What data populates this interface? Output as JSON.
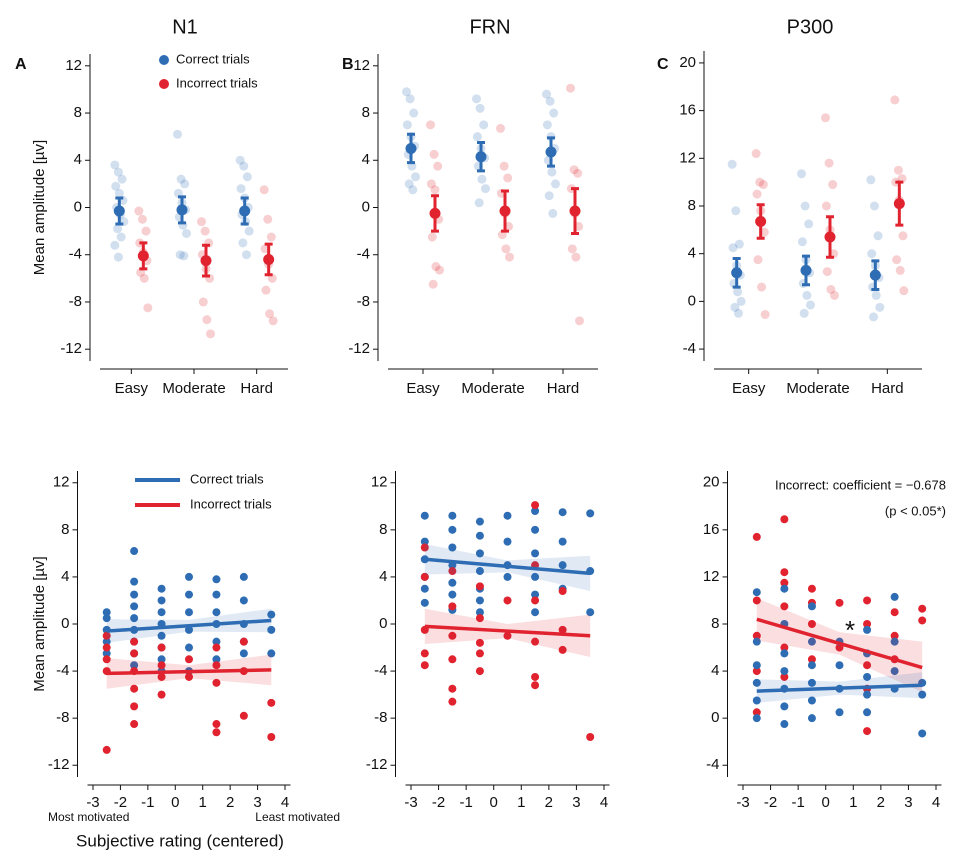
{
  "chart_data": [
    {
      "type": "strip",
      "panel": "A",
      "title": "N1",
      "ylabel": "Mean amplitude [µv]",
      "categories": [
        "Easy",
        "Moderate",
        "Hard"
      ],
      "ylim": [
        -13,
        13
      ],
      "yticks": [
        -12,
        -8,
        -4,
        0,
        4,
        8,
        12
      ],
      "legend": "upper center",
      "series": [
        {
          "name": "Correct trials",
          "color": "#2e6db4",
          "values": [
            -0.3,
            -0.2,
            -0.3
          ],
          "errors": [
            1.1,
            1.1,
            1.1
          ],
          "points": [
            [
              3.6,
              3,
              2.4,
              1.8,
              1.2,
              0.6,
              0,
              -0.6,
              -1.2,
              -1.8,
              -2.5,
              -3.2,
              -4.2
            ],
            [
              6.2,
              2.4,
              2,
              1.2,
              0.4,
              -0.2,
              -0.8,
              -1.5,
              -2.2,
              -4,
              -4.1
            ],
            [
              4,
              3.5,
              2.6,
              1.6,
              0.8,
              0,
              -0.6,
              -1.2,
              -2,
              -3,
              -4
            ]
          ]
        },
        {
          "name": "Incorrect trials",
          "color": "#e0232f",
          "values": [
            -4.1,
            -4.5,
            -4.4
          ],
          "errors": [
            1.1,
            1.3,
            1.3
          ],
          "points": [
            [
              -0.3,
              -1,
              -2,
              -3,
              -3.8,
              -4.5,
              -5.5,
              -6,
              -8.5
            ],
            [
              -1.2,
              -2,
              -3,
              -4,
              -5.2,
              -6,
              -8,
              -9.5,
              -10.7
            ],
            [
              1.5,
              -1,
              -2.5,
              -3.5,
              -4.8,
              -6,
              -7,
              -9,
              -9.6
            ]
          ]
        }
      ]
    },
    {
      "type": "strip",
      "panel": "B",
      "title": "FRN",
      "categories": [
        "Easy",
        "Moderate",
        "Hard"
      ],
      "ylim": [
        -13,
        13
      ],
      "yticks": [
        -12,
        -8,
        -4,
        0,
        4,
        8,
        12
      ],
      "series": [
        {
          "color": "#2e6db4",
          "values": [
            5.0,
            4.3,
            4.7
          ],
          "errors": [
            1.2,
            1.2,
            1.2
          ],
          "points": [
            [
              9.8,
              9.2,
              8,
              7,
              6,
              5.2,
              4.5,
              3.5,
              2.6,
              2,
              1.5
            ],
            [
              9.2,
              8.4,
              7,
              6,
              5,
              4.2,
              3.5,
              2.4,
              1.6,
              0.4
            ],
            [
              9.6,
              9,
              8,
              7,
              6,
              5,
              4,
              3,
              2,
              1,
              -0.5
            ]
          ]
        },
        {
          "color": "#e0232f",
          "values": [
            -0.5,
            -0.3,
            -0.3
          ],
          "errors": [
            1.5,
            1.7,
            1.9
          ],
          "points": [
            [
              7,
              4.5,
              3.5,
              2,
              1.5,
              -1,
              -2.5,
              -5,
              -5.3,
              -6.5
            ],
            [
              6.7,
              3.5,
              2.5,
              1.2,
              -0.5,
              -1.6,
              -2.3,
              -3.5,
              -4.2
            ],
            [
              10.1,
              3.2,
              2.9,
              1.6,
              -0.5,
              -1.6,
              -3.5,
              -4.2,
              -9.6
            ]
          ]
        }
      ]
    },
    {
      "type": "strip",
      "panel": "C",
      "title": "P300",
      "categories": [
        "Easy",
        "Moderate",
        "Hard"
      ],
      "ylim": [
        -5,
        21
      ],
      "yticks": [
        -4,
        0,
        4,
        8,
        12,
        16,
        20
      ],
      "series": [
        {
          "color": "#2e6db4",
          "values": [
            2.4,
            2.6,
            2.2
          ],
          "errors": [
            1.2,
            1.2,
            1.2
          ],
          "points": [
            [
              11.5,
              7.6,
              4.8,
              4.5,
              3,
              2.2,
              1.5,
              0.8,
              0,
              -0.5,
              -1
            ],
            [
              10.7,
              8,
              6.5,
              5,
              3.5,
              2.4,
              1.5,
              0.5,
              -0.3,
              -1
            ],
            [
              10.2,
              8,
              5.5,
              4,
              3,
              2,
              1.2,
              0.5,
              -0.5,
              -1.3
            ]
          ]
        },
        {
          "color": "#e0232f",
          "values": [
            6.7,
            5.4,
            8.2
          ],
          "errors": [
            1.4,
            1.7,
            1.8
          ],
          "points": [
            [
              12.4,
              10,
              9.8,
              9,
              7.6,
              5.8,
              3.5,
              1.2,
              -1.1
            ],
            [
              15.4,
              11.6,
              9.8,
              8,
              6,
              4,
              2.5,
              1,
              0.5
            ],
            [
              16.9,
              11,
              10.3,
              10,
              8.5,
              5.5,
              3.5,
              2.6,
              0.9
            ]
          ]
        }
      ]
    },
    {
      "type": "scatter",
      "ylabel": "Mean amplitude [µv]",
      "xlabel": "Subjective rating (centered)",
      "annotations": [
        "Most motivated",
        "Least motivated"
      ],
      "xlim": [
        -3.2,
        4.2
      ],
      "xticks": [
        -3,
        -2,
        -1,
        0,
        1,
        2,
        3,
        4
      ],
      "ylim": [
        -13,
        13
      ],
      "yticks": [
        -12,
        -8,
        -4,
        0,
        4,
        8,
        12
      ],
      "legend": "upper left",
      "series": [
        {
          "name": "Correct trials",
          "color": "#2e6db4",
          "x": [
            -2.5,
            -2.5,
            -2.5,
            -2.5,
            -2.5,
            -1.5,
            -1.5,
            -1.5,
            -1.5,
            -1.5,
            -1.5,
            -1.5,
            -1.5,
            -1.5,
            -0.5,
            -0.5,
            -0.5,
            -0.5,
            -0.5,
            -0.5,
            -0.5,
            -0.5,
            0.5,
            0.5,
            0.5,
            0.5,
            0.5,
            0.5,
            1.5,
            1.5,
            1.5,
            1.5,
            1.5,
            1.5,
            2.5,
            2.5,
            2.5,
            2.5,
            2.5,
            3.5,
            3.5,
            3.5
          ],
          "y": [
            1,
            0.5,
            -0.5,
            -1.5,
            -2.5,
            6.2,
            3.6,
            2.5,
            1.5,
            0.5,
            -0.5,
            -1.5,
            -2.5,
            -3.5,
            3,
            2,
            1,
            0,
            -1,
            -2,
            -3,
            -4,
            4,
            2.5,
            1,
            -0.5,
            -2,
            -4,
            3.8,
            2.5,
            1,
            0,
            -1.5,
            -3,
            4,
            2,
            0,
            -1.5,
            -2.5,
            0.8,
            -0.5,
            -2.5
          ],
          "fit": {
            "x": [
              -2.5,
              0.5,
              3.5
            ],
            "y": [
              -0.6,
              -0.15,
              0.3
            ],
            "lower": [
              -1.6,
              -0.65,
              -0.7
            ],
            "upper": [
              0.4,
              0.35,
              1.3
            ]
          }
        },
        {
          "name": "Incorrect trials",
          "color": "#e0232f",
          "x": [
            -2.5,
            -2.5,
            -2.5,
            -2.5,
            -2.5,
            -1.5,
            -1.5,
            -1.5,
            -1.5,
            -1.5,
            -1.5,
            -0.5,
            -0.5,
            -0.5,
            -0.5,
            0.5,
            0.5,
            1.5,
            1.5,
            1.5,
            1.5,
            1.5,
            2.5,
            2.5,
            2.5,
            3.5,
            3.5
          ],
          "y": [
            -10.7,
            -4,
            -3,
            -2,
            -1,
            -8.5,
            -7,
            -5.5,
            -4,
            -2.5,
            -1.5,
            -6,
            -4.5,
            -3.5,
            -2,
            -4.5,
            -3,
            -9.2,
            -8.5,
            -5,
            -3.5,
            -2,
            -7.8,
            -4,
            -1.5,
            -9.6,
            -6.7
          ],
          "fit": {
            "x": [
              -2.5,
              0.5,
              3.5
            ],
            "y": [
              -4.2,
              -4.05,
              -3.9
            ],
            "lower": [
              -5.5,
              -4.6,
              -5.2
            ],
            "upper": [
              -2.9,
              -3.5,
              -2.6
            ]
          }
        }
      ]
    },
    {
      "type": "scatter",
      "xlim": [
        -3.2,
        4.2
      ],
      "xticks": [
        -3,
        -2,
        -1,
        0,
        1,
        2,
        3,
        4
      ],
      "ylim": [
        -13,
        13
      ],
      "yticks": [
        -12,
        -8,
        -4,
        0,
        4,
        8,
        12
      ],
      "series": [
        {
          "color": "#2e6db4",
          "x": [
            -2.5,
            -2.5,
            -2.5,
            -2.5,
            -2.5,
            -2.5,
            -1.5,
            -1.5,
            -1.5,
            -1.5,
            -1.5,
            -1.5,
            -1.5,
            -0.5,
            -0.5,
            -0.5,
            -0.5,
            -0.5,
            -0.5,
            -0.5,
            0.5,
            0.5,
            0.5,
            0.5,
            1.5,
            1.5,
            1.5,
            1.5,
            1.5,
            1.5,
            2.5,
            2.5,
            2.5,
            2.5,
            3.5,
            3.5,
            3.5
          ],
          "y": [
            9.2,
            7,
            5.5,
            4,
            3,
            1.8,
            9.2,
            8,
            6.5,
            5,
            3.5,
            2.5,
            1.2,
            8.7,
            7.5,
            6,
            4.5,
            3,
            2,
            1,
            9.2,
            7,
            5,
            4,
            9.6,
            8,
            6,
            4,
            2.5,
            1,
            9.5,
            7,
            5,
            3,
            9.4,
            4.5,
            1
          ],
          "fit": {
            "x": [
              -2.5,
              0.5,
              3.5
            ],
            "y": [
              5.5,
              4.9,
              4.3
            ],
            "lower": [
              4.2,
              4.4,
              2.8
            ],
            "upper": [
              6.8,
              5.4,
              5.8
            ]
          }
        },
        {
          "color": "#e0232f",
          "x": [
            -2.5,
            -2.5,
            -2.5,
            -2.5,
            -2.5,
            -1.5,
            -1.5,
            -1.5,
            -1.5,
            -1.5,
            -1.5,
            -0.5,
            -0.5,
            -0.5,
            -0.5,
            -0.5,
            0.5,
            0.5,
            1.5,
            1.5,
            1.5,
            1.5,
            1.5,
            1.5,
            2.5,
            2.5,
            2.5,
            3.5
          ],
          "y": [
            6.5,
            4,
            -0.5,
            -2.5,
            -3.5,
            4.5,
            1.5,
            -1,
            -3,
            -5.5,
            -6.6,
            3.2,
            0.5,
            -1.6,
            -2.5,
            -4,
            2,
            -1,
            10.1,
            5,
            2,
            -1.5,
            -4.5,
            -5.2,
            2.8,
            -0.5,
            -2.2,
            -9.6
          ],
          "fit": {
            "x": [
              -2.5,
              0.5,
              3.5
            ],
            "y": [
              -0.2,
              -0.6,
              -1.0
            ],
            "lower": [
              -1.7,
              -1.2,
              -2.8
            ],
            "upper": [
              1.3,
              0.0,
              0.8
            ]
          }
        }
      ]
    },
    {
      "type": "scatter",
      "annotations": [
        "Incorrect: coefficient = −0.678",
        "(p < 0.05*)",
        "*"
      ],
      "xlim": [
        -3.2,
        4.2
      ],
      "xticks": [
        -3,
        -2,
        -1,
        0,
        1,
        2,
        3,
        4
      ],
      "ylim": [
        -5,
        21
      ],
      "yticks": [
        -4,
        0,
        4,
        8,
        12,
        16,
        20
      ],
      "series": [
        {
          "color": "#e0232f",
          "x": [
            -2.5,
            -2.5,
            -2.5,
            -2.5,
            -2.5,
            -1.5,
            -1.5,
            -1.5,
            -1.5,
            -1.5,
            -1.5,
            -0.5,
            -0.5,
            -0.5,
            -0.5,
            0.5,
            0.5,
            1.5,
            1.5,
            1.5,
            1.5,
            1.5,
            2.5,
            2.5,
            2.5,
            3.5,
            3.5
          ],
          "y": [
            15.4,
            10,
            7,
            4,
            0.5,
            16.9,
            12.4,
            11.5,
            9.5,
            6,
            3.5,
            11,
            9.8,
            8,
            5,
            9.8,
            6,
            10,
            8,
            4.5,
            2.5,
            -1.1,
            9,
            7,
            5,
            9.3,
            8.3
          ],
          "fit": {
            "x": [
              -2.5,
              0.5,
              3.5
            ],
            "y": [
              8.4,
              6.35,
              4.3
            ],
            "lower": [
              6.6,
              5.4,
              2.2
            ],
            "upper": [
              10.2,
              7.3,
              6.5
            ]
          }
        },
        {
          "color": "#2e6db4",
          "x": [
            -2.5,
            -2.5,
            -2.5,
            -2.5,
            -2.5,
            -2.5,
            -1.5,
            -1.5,
            -1.5,
            -1.5,
            -1.5,
            -1.5,
            -1.5,
            -0.5,
            -0.5,
            -0.5,
            -0.5,
            -0.5,
            -0.5,
            0.5,
            0.5,
            0.5,
            0.5,
            1.5,
            1.5,
            1.5,
            1.5,
            1.5,
            2.5,
            2.5,
            2.5,
            2.5,
            3.5,
            3.5,
            3.5
          ],
          "y": [
            10.7,
            6.5,
            4.5,
            3,
            1.5,
            0,
            11,
            8,
            5.5,
            4,
            2.5,
            1,
            -0.5,
            9.5,
            6.5,
            4.5,
            3,
            1.5,
            0,
            6.5,
            4.5,
            2.5,
            0.5,
            7.5,
            5.5,
            3.5,
            2,
            0.5,
            10.3,
            6.5,
            4,
            2.5,
            3,
            2,
            -1.3
          ],
          "fit": {
            "x": [
              -2.5,
              0.5,
              3.5
            ],
            "y": [
              2.3,
              2.55,
              2.8
            ],
            "lower": [
              1.3,
              2.0,
              1.7
            ],
            "upper": [
              3.3,
              3.1,
              3.9
            ]
          }
        }
      ]
    }
  ]
}
